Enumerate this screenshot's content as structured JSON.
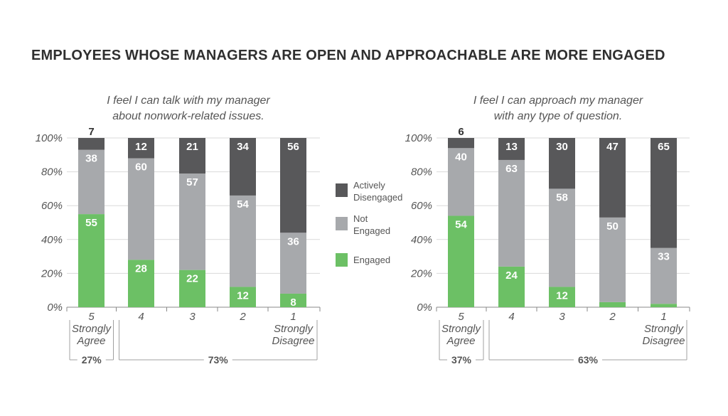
{
  "title": "EMPLOYEES WHOSE MANAGERS ARE OPEN AND APPROACHABLE ARE MORE ENGAGED",
  "colors": {
    "actively_disengaged": "#58585a",
    "not_engaged": "#a7a9ac",
    "engaged": "#6cc065",
    "grid": "#d9d9d9",
    "bracket": "#a0a0a0"
  },
  "legend": [
    {
      "key": "actively_disengaged",
      "lines": [
        "Actively",
        "Disengaged"
      ]
    },
    {
      "key": "not_engaged",
      "lines": [
        "Not",
        "Engaged"
      ]
    },
    {
      "key": "engaged",
      "lines": [
        "Engaged"
      ]
    }
  ],
  "chart_data": [
    {
      "type": "bar",
      "stacked": true,
      "subtitle_lines": [
        "I feel I can talk with my manager",
        "about nonwork-related issues."
      ],
      "categories": [
        "5",
        "4",
        "3",
        "2",
        "1"
      ],
      "yticks": [
        "0%",
        "20%",
        "40%",
        "60%",
        "80%",
        "100%"
      ],
      "ylim": [
        0,
        100
      ],
      "series": [
        {
          "name": "Engaged",
          "key": "engaged",
          "values": [
            55,
            28,
            22,
            12,
            8
          ],
          "labels": [
            "55",
            "28",
            "22",
            "12",
            "8"
          ]
        },
        {
          "name": "Not Engaged",
          "key": "not_engaged",
          "values": [
            38,
            60,
            57,
            54,
            36
          ],
          "labels": [
            "38",
            "60",
            "57",
            "54",
            "36"
          ]
        },
        {
          "name": "Actively Disengaged",
          "key": "actively_disengaged",
          "values": [
            7,
            12,
            21,
            34,
            56
          ],
          "labels": [
            "7",
            "12",
            "21",
            "34",
            "56"
          ]
        }
      ],
      "anchor_left": [
        "Strongly",
        "Agree"
      ],
      "anchor_right": [
        "Strongly",
        "Disagree"
      ],
      "groups": [
        {
          "label": "27%",
          "span": [
            0,
            0
          ]
        },
        {
          "label": "73%",
          "span": [
            1,
            4
          ]
        }
      ]
    },
    {
      "type": "bar",
      "stacked": true,
      "subtitle_lines": [
        "I feel I can approach my manager",
        "with any type of question."
      ],
      "categories": [
        "5",
        "4",
        "3",
        "2",
        "1"
      ],
      "yticks": [
        "0%",
        "20%",
        "40%",
        "60%",
        "80%",
        "100%"
      ],
      "ylim": [
        0,
        100
      ],
      "series": [
        {
          "name": "Engaged",
          "key": "engaged",
          "values": [
            54,
            24,
            12,
            3,
            2
          ],
          "labels": [
            "54",
            "24",
            "12",
            "",
            ""
          ]
        },
        {
          "name": "Not Engaged",
          "key": "not_engaged",
          "values": [
            40,
            63,
            58,
            50,
            33
          ],
          "labels": [
            "40",
            "63",
            "58",
            "50",
            "33"
          ]
        },
        {
          "name": "Actively Disengaged",
          "key": "actively_disengaged",
          "values": [
            6,
            13,
            30,
            47,
            65
          ],
          "labels": [
            "6",
            "13",
            "30",
            "47",
            "65"
          ]
        }
      ],
      "anchor_left": [
        "Strongly",
        "Agree"
      ],
      "anchor_right": [
        "Strongly",
        "Disagree"
      ],
      "groups": [
        {
          "label": "37%",
          "span": [
            0,
            0
          ]
        },
        {
          "label": "63%",
          "span": [
            1,
            4
          ]
        }
      ]
    }
  ]
}
